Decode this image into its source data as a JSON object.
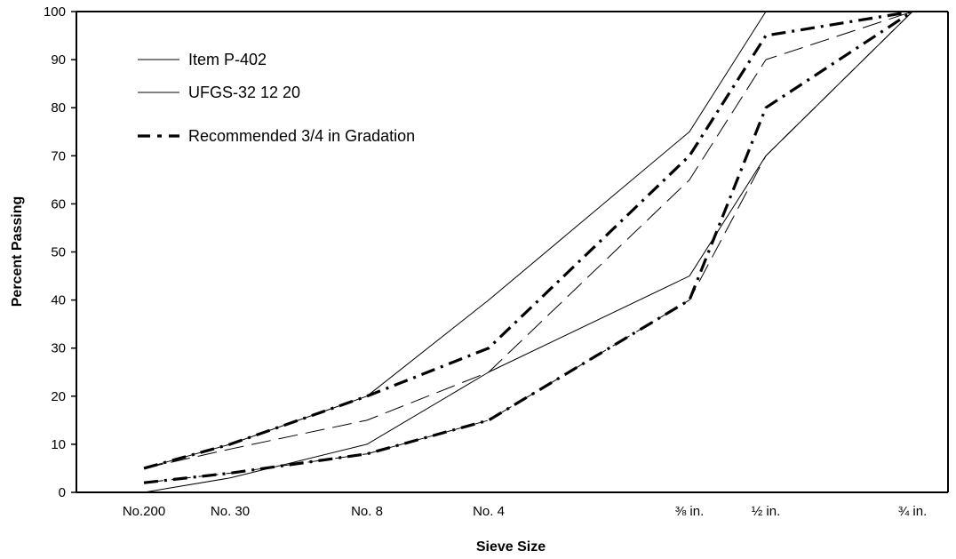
{
  "chart_data": {
    "type": "line",
    "title": "",
    "xlabel": "Sieve Size",
    "ylabel": "Percent Passing",
    "ylim": [
      0,
      100
    ],
    "yticks": [
      0,
      10,
      20,
      30,
      40,
      50,
      60,
      70,
      80,
      90,
      100
    ],
    "x_scale": "sieve size (gradation chart)",
    "categories": [
      "No.200",
      "No. 30",
      "No. 8",
      "No. 4",
      "⅜ in.",
      "½ in.",
      "¾ in."
    ],
    "grid": false,
    "legend_position": "top-left",
    "legend": [
      {
        "label": "Item P-402",
        "style": "thin-dashed"
      },
      {
        "label": "UFGS-32 12 20",
        "style": "thin-solid"
      },
      {
        "label": "Recommended 3/4 in Gradation",
        "style": "thick-dash-dot"
      }
    ],
    "series": [
      {
        "name": "Item P-402",
        "style": "thin-dashed",
        "band": "upper",
        "points": [
          [
            "No.200",
            5
          ],
          [
            "No. 30",
            9
          ],
          [
            "No. 8",
            15
          ],
          [
            "No. 4",
            25
          ],
          [
            "⅜ in.",
            65
          ],
          [
            "½ in.",
            90
          ],
          [
            "¾ in.",
            100
          ]
        ]
      },
      {
        "name": "Item P-402",
        "style": "thin-dashed",
        "band": "lower",
        "points": [
          [
            "No.200",
            2
          ],
          [
            "No. 30",
            4
          ],
          [
            "No. 8",
            8
          ],
          [
            "No. 4",
            15
          ],
          [
            "⅜ in.",
            40
          ],
          [
            "½ in.",
            70
          ],
          [
            "¾ in.",
            100
          ]
        ]
      },
      {
        "name": "UFGS-32 12 20",
        "style": "thin-solid",
        "band": "upper",
        "points": [
          [
            "No.200",
            5
          ],
          [
            "No. 30",
            10
          ],
          [
            "No. 8",
            20
          ],
          [
            "No. 4",
            40
          ],
          [
            "⅜ in.",
            75
          ],
          [
            "½ in.",
            100
          ],
          [
            "¾ in.",
            100
          ]
        ]
      },
      {
        "name": "UFGS-32 12 20",
        "style": "thin-solid",
        "band": "lower",
        "points": [
          [
            "No.200",
            0
          ],
          [
            "No. 30",
            3
          ],
          [
            "No. 8",
            10
          ],
          [
            "No. 4",
            25
          ],
          [
            "⅜ in.",
            45
          ],
          [
            "½ in.",
            70
          ],
          [
            "¾ in.",
            100
          ]
        ]
      },
      {
        "name": "Recommended 3/4 in Gradation",
        "style": "thick-dash-dot",
        "band": "upper",
        "points": [
          [
            "No.200",
            5
          ],
          [
            "No. 30",
            10
          ],
          [
            "No. 8",
            20
          ],
          [
            "No. 4",
            30
          ],
          [
            "⅜ in.",
            70
          ],
          [
            "½ in.",
            95
          ],
          [
            "¾ in.",
            100
          ]
        ]
      },
      {
        "name": "Recommended 3/4 in Gradation",
        "style": "thick-dash-dot",
        "band": "lower",
        "points": [
          [
            "No.200",
            2
          ],
          [
            "No. 30",
            4
          ],
          [
            "No. 8",
            8
          ],
          [
            "No. 4",
            15
          ],
          [
            "⅜ in.",
            40
          ],
          [
            "½ in.",
            80
          ],
          [
            "¾ in.",
            100
          ]
        ]
      }
    ],
    "line_color": "#000000"
  }
}
